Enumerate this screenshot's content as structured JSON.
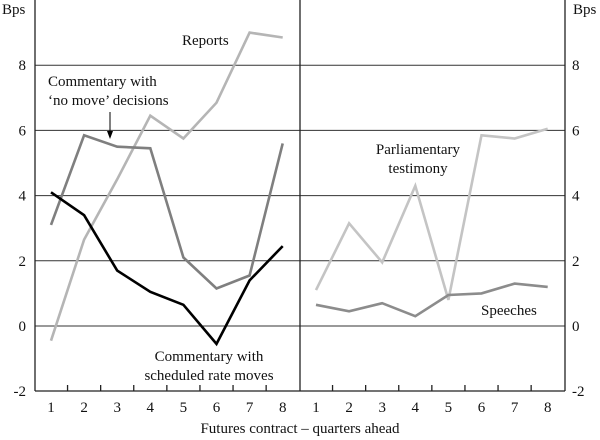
{
  "chart_data": [
    {
      "type": "line",
      "panel": "left",
      "ylabel": "Bps",
      "ylim": [
        -2,
        10
      ],
      "yticks": [
        -2,
        0,
        2,
        4,
        6,
        8
      ],
      "x": [
        1,
        2,
        3,
        4,
        5,
        6,
        7,
        8
      ],
      "grid": true,
      "series": [
        {
          "name": "Reports",
          "color": "#b5b5b5",
          "values": [
            -0.45,
            2.65,
            4.5,
            6.45,
            5.75,
            6.85,
            9.0,
            8.85
          ]
        },
        {
          "name": "Commentary with ‘no move’ decisions",
          "name_lines": [
            "Commentary with",
            "‘no move’ decisions"
          ],
          "color": "#7f7f7f",
          "values": [
            3.1,
            5.85,
            5.5,
            5.45,
            2.1,
            1.15,
            1.55,
            5.6
          ]
        },
        {
          "name": "Commentary with scheduled rate moves",
          "name_lines": [
            "Commentary with",
            "scheduled rate moves"
          ],
          "color": "#000000",
          "values": [
            4.1,
            3.4,
            1.7,
            1.05,
            0.65,
            -0.55,
            1.4,
            2.45
          ]
        }
      ]
    },
    {
      "type": "line",
      "panel": "right",
      "ylabel": "Bps",
      "ylim": [
        -2,
        10
      ],
      "yticks": [
        -2,
        0,
        2,
        4,
        6,
        8
      ],
      "x": [
        1,
        2,
        3,
        4,
        5,
        6,
        7,
        8
      ],
      "grid": true,
      "series": [
        {
          "name": "Parliamentary testimony",
          "name_lines": [
            "Parliamentary",
            "testimony"
          ],
          "color": "#c4c4c4",
          "values": [
            1.1,
            3.15,
            1.95,
            4.3,
            0.8,
            5.85,
            5.75,
            6.05
          ]
        },
        {
          "name": "Speeches",
          "color": "#8c8c8c",
          "values": [
            0.65,
            0.45,
            0.7,
            0.3,
            0.95,
            1.0,
            1.3,
            1.2
          ]
        }
      ]
    }
  ],
  "xlabel": "Futures contract – quarters ahead"
}
